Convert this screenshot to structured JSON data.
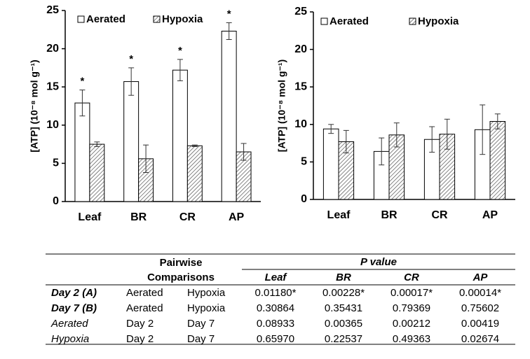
{
  "chart_data": [
    {
      "type": "bar",
      "ylabel": "[ATP] (10⁻⁸ mol g⁻¹)",
      "categories": [
        "Leaf",
        "BR",
        "CR",
        "AP"
      ],
      "series": [
        {
          "name": "Aerated",
          "color": "#ffffff",
          "pattern": "solid",
          "values": [
            12.9,
            15.7,
            17.2,
            22.3
          ],
          "errors": [
            1.7,
            1.8,
            1.4,
            1.1
          ]
        },
        {
          "name": "Hypoxia",
          "color": "#444444",
          "pattern": "hatch",
          "values": [
            7.5,
            5.6,
            7.3,
            6.5
          ],
          "errors": [
            0.3,
            1.8,
            0.1,
            1.1
          ]
        }
      ],
      "significance": [
        "*",
        "*",
        "*",
        "*"
      ],
      "ylim": [
        0,
        25
      ],
      "yticks": [
        0,
        5,
        10,
        15,
        20,
        25
      ]
    },
    {
      "type": "bar",
      "ylabel": "[ATP] (10⁻⁸ mol g⁻¹)",
      "categories": [
        "Leaf",
        "BR",
        "CR",
        "AP"
      ],
      "series": [
        {
          "name": "Aerated",
          "color": "#ffffff",
          "pattern": "solid",
          "values": [
            9.4,
            6.4,
            8.0,
            9.3
          ],
          "errors": [
            0.6,
            1.8,
            1.7,
            3.3
          ]
        },
        {
          "name": "Hypoxia",
          "color": "#444444",
          "pattern": "hatch",
          "values": [
            7.7,
            8.6,
            8.7,
            10.4
          ],
          "errors": [
            1.5,
            1.6,
            2.0,
            1.0
          ]
        }
      ],
      "ylim": [
        0,
        25
      ],
      "yticks": [
        0,
        5,
        10,
        15,
        20,
        25
      ]
    }
  ],
  "table": {
    "header": {
      "pairwise": [
        "Pairwise",
        "Comparisons"
      ],
      "p_value": "P value",
      "columns": [
        "Leaf",
        "BR",
        "CR",
        "AP"
      ]
    },
    "rows": [
      [
        "Day 2 (A)",
        "Aerated",
        "Hypoxia",
        "0.01180*",
        "0.00228*",
        "0.00017*",
        "0.00014*"
      ],
      [
        "Day 7 (B)",
        "Aerated",
        "Hypoxia",
        "0.30864",
        "0.35431",
        "0.79369",
        "0.75602"
      ],
      [
        "Aerated",
        "Day 2",
        "Day 7",
        "0.08933",
        "0.00365",
        "0.00212",
        "0.00419"
      ],
      [
        "Hypoxia",
        "Day 2",
        "Day 7",
        "0.65970",
        "0.22537",
        "0.49363",
        "0.02674"
      ]
    ]
  }
}
